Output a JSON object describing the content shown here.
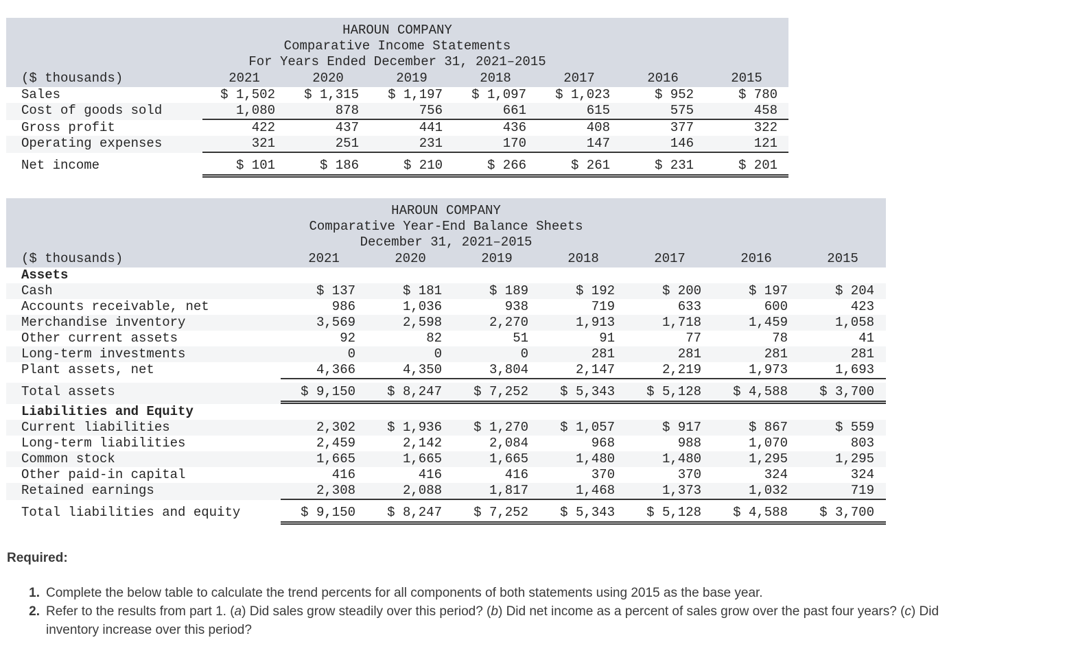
{
  "colors": {
    "table_header_bg": "#d7dbe3",
    "row_shade": "#f4f5f6",
    "rule_color": "#363636",
    "ink": "#262626"
  },
  "income_statement": {
    "title_lines": [
      "HAROUN COMPANY",
      "Comparative Income Statements",
      "For Years Ended December 31, 2021–2015"
    ],
    "unit_label": "($ thousands)",
    "years": [
      "2021",
      "2020",
      "2019",
      "2018",
      "2017",
      "2016",
      "2015"
    ],
    "rows": [
      {
        "label": "Sales",
        "values": [
          "$ 1,502",
          "$ 1,315",
          "$ 1,197",
          "$ 1,097",
          "$ 1,023",
          "$ 952",
          "$ 780"
        ],
        "shaded": false,
        "rule": "none"
      },
      {
        "label": "Cost of goods sold",
        "values": [
          "1,080",
          "878",
          "756",
          "661",
          "615",
          "575",
          "458"
        ],
        "shaded": true,
        "rule": "single"
      },
      {
        "label": "Gross profit",
        "values": [
          "422",
          "437",
          "441",
          "436",
          "408",
          "377",
          "322"
        ],
        "shaded": false,
        "rule": "none"
      },
      {
        "label": "Operating expenses",
        "values": [
          "321",
          "251",
          "231",
          "170",
          "147",
          "146",
          "121"
        ],
        "shaded": true,
        "rule": "single"
      },
      {
        "label": "Net income",
        "values": [
          "$ 101",
          "$ 186",
          "$ 210",
          "$ 266",
          "$ 261",
          "$ 231",
          "$ 201"
        ],
        "shaded": false,
        "rule": "double",
        "total": true
      }
    ]
  },
  "balance_sheet": {
    "title_lines": [
      "HAROUN COMPANY",
      "Comparative Year-End Balance Sheets",
      "December 31, 2021–2015"
    ],
    "unit_label": "($ thousands)",
    "years": [
      "2021",
      "2020",
      "2019",
      "2018",
      "2017",
      "2016",
      "2015"
    ],
    "rows": [
      {
        "section": "Assets"
      },
      {
        "label": "Cash",
        "values": [
          "$ 137",
          "$ 181",
          "$ 189",
          "$ 192",
          "$ 200",
          "$ 197",
          "$ 204"
        ],
        "shaded": true,
        "rule": "none"
      },
      {
        "label": "Accounts receivable, net",
        "values": [
          "986",
          "1,036",
          "938",
          "719",
          "633",
          "600",
          "423"
        ],
        "shaded": false,
        "rule": "none"
      },
      {
        "label": "Merchandise inventory",
        "values": [
          "3,569",
          "2,598",
          "2,270",
          "1,913",
          "1,718",
          "1,459",
          "1,058"
        ],
        "shaded": true,
        "rule": "none"
      },
      {
        "label": "Other current assets",
        "values": [
          "92",
          "82",
          "51",
          "91",
          "77",
          "78",
          "41"
        ],
        "shaded": false,
        "rule": "none"
      },
      {
        "label": "Long-term investments",
        "values": [
          "0",
          "0",
          "0",
          "281",
          "281",
          "281",
          "281"
        ],
        "shaded": true,
        "rule": "none"
      },
      {
        "label": "Plant assets, net",
        "values": [
          "4,366",
          "4,350",
          "3,804",
          "2,147",
          "2,219",
          "1,973",
          "1,693"
        ],
        "shaded": false,
        "rule": "single"
      },
      {
        "label": "Total assets",
        "values": [
          "$ 9,150",
          "$ 8,247",
          "$ 7,252",
          "$ 5,343",
          "$ 5,128",
          "$ 4,588",
          "$ 3,700"
        ],
        "shaded": true,
        "rule": "double",
        "total": true
      },
      {
        "section": "Liabilities and Equity"
      },
      {
        "label": "Current liabilities",
        "values": [
          "2,302",
          "$ 1,936",
          "$ 1,270",
          "$ 1,057",
          "$ 917",
          "$ 867",
          "$ 559"
        ],
        "shaded": true,
        "rule": "none"
      },
      {
        "label": "Long-term liabilities",
        "values": [
          "2,459",
          "2,142",
          "2,084",
          "968",
          "988",
          "1,070",
          "803"
        ],
        "shaded": false,
        "rule": "none"
      },
      {
        "label": "Common stock",
        "values": [
          "1,665",
          "1,665",
          "1,665",
          "1,480",
          "1,480",
          "1,295",
          "1,295"
        ],
        "shaded": true,
        "rule": "none"
      },
      {
        "label": "Other paid-in capital",
        "values": [
          "416",
          "416",
          "416",
          "370",
          "370",
          "324",
          "324"
        ],
        "shaded": false,
        "rule": "none"
      },
      {
        "label": "Retained earnings",
        "values": [
          "2,308",
          "2,088",
          "1,817",
          "1,468",
          "1,373",
          "1,032",
          "719"
        ],
        "shaded": true,
        "rule": "single"
      },
      {
        "label": "Total liabilities and equity",
        "values": [
          "$ 9,150",
          "$ 8,247",
          "$ 7,252",
          "$ 5,343",
          "$ 5,128",
          "$ 4,588",
          "$ 3,700"
        ],
        "shaded": false,
        "rule": "double",
        "total": true
      }
    ]
  },
  "required": {
    "heading": "Required:",
    "items": [
      {
        "number": "1.",
        "parts": [
          {
            "t": "Complete the below table to calculate the trend percents for all components of both statements using 2015 as the base year."
          }
        ]
      },
      {
        "number": "2.",
        "parts": [
          {
            "t": "Refer to the results from part 1. ("
          },
          {
            "t": "a",
            "i": true
          },
          {
            "t": ") Did sales grow steadily over this period? ("
          },
          {
            "t": "b",
            "i": true
          },
          {
            "t": ") Did net income as a percent of sales grow over the past four years? ("
          },
          {
            "t": "c",
            "i": true
          },
          {
            "t": ") Did inventory increase over this period?"
          }
        ]
      }
    ]
  }
}
